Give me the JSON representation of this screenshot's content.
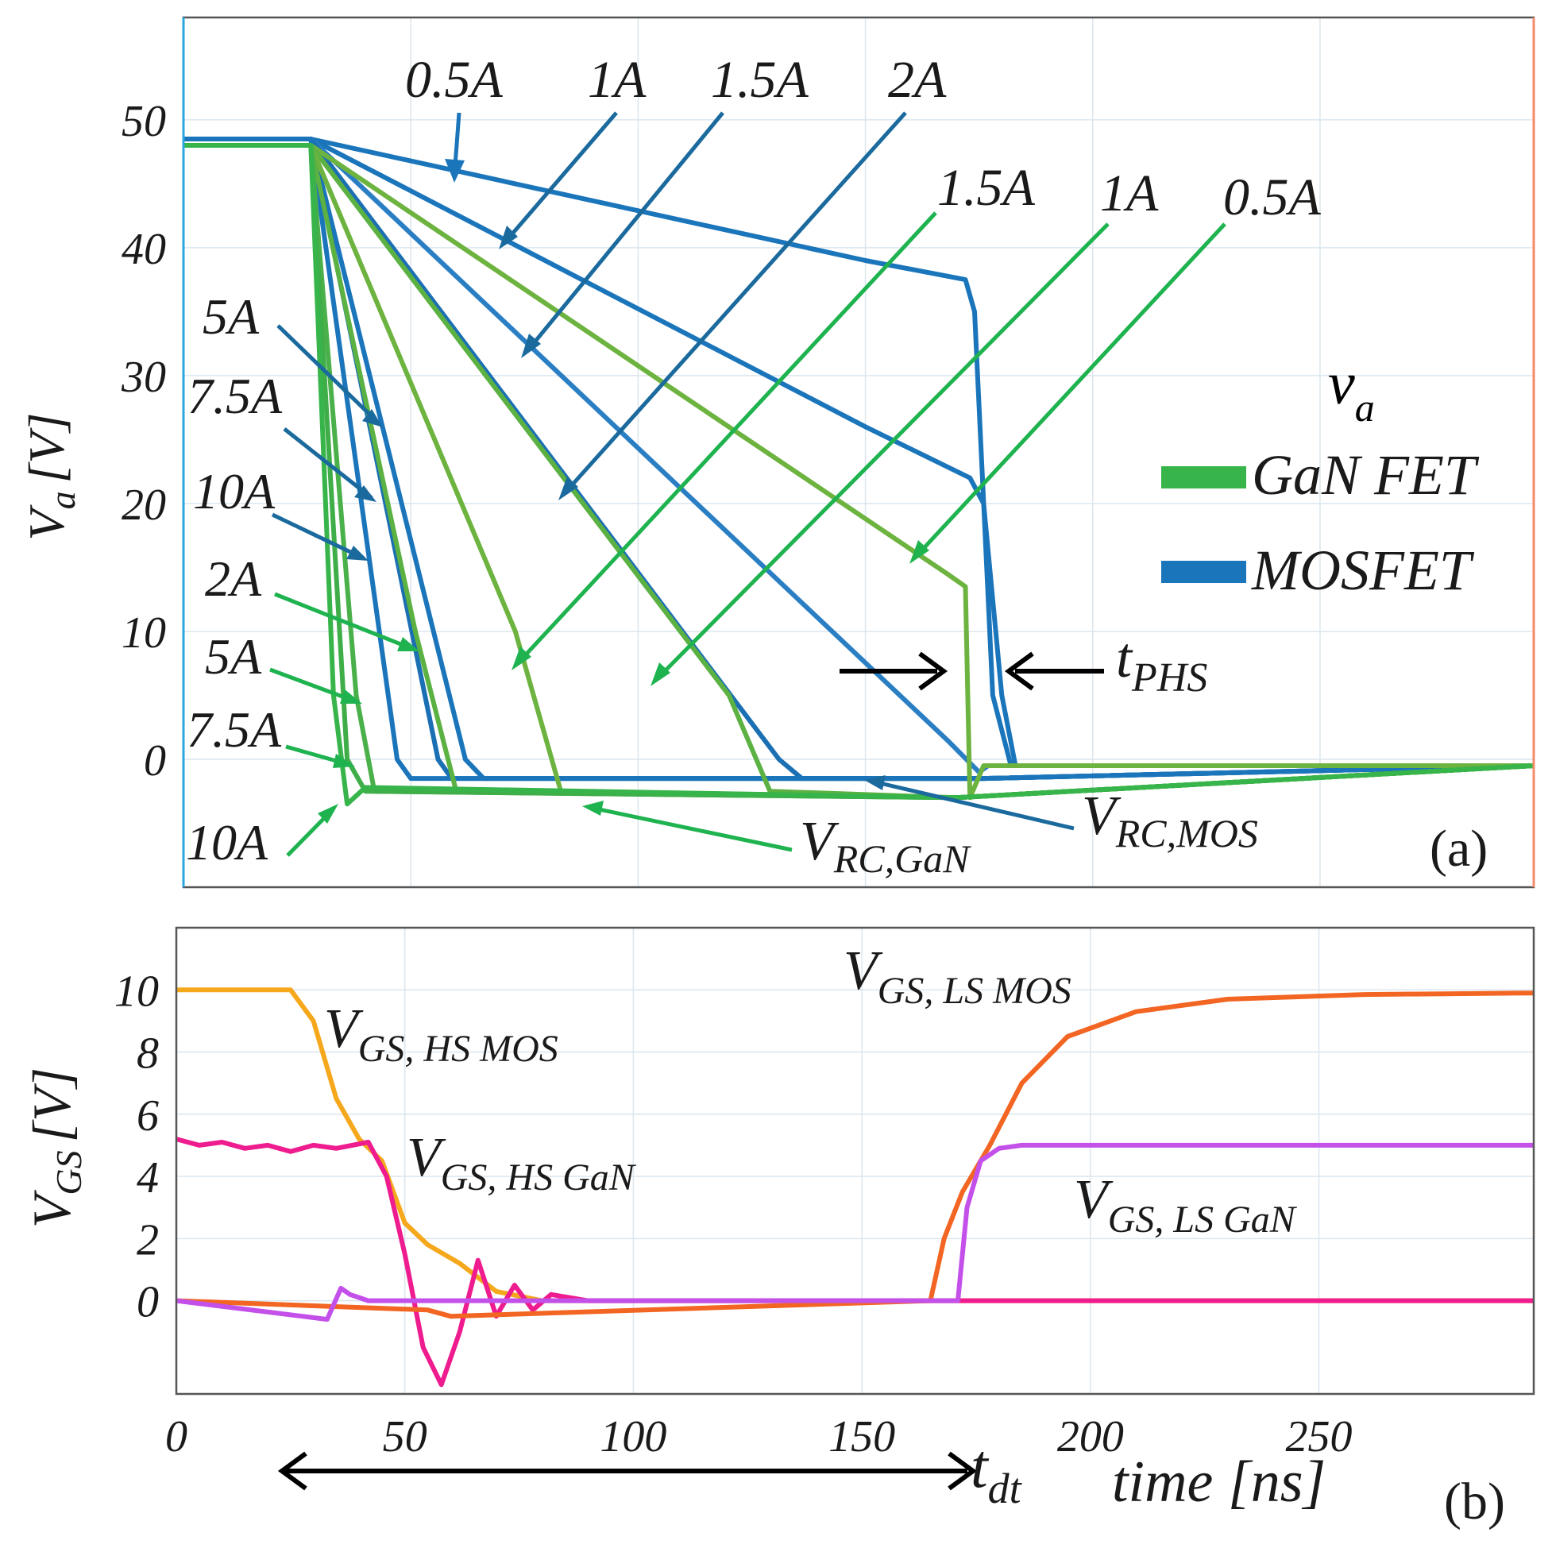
{
  "chart_data": [
    {
      "panel": "(a)",
      "type": "line",
      "ylabel": "V",
      "ylabel_sub": "a",
      "ylabel_unit": "[V]",
      "ylim": [
        -10,
        58
      ],
      "xlim": [
        0,
        297
      ],
      "yticks": [
        0,
        10,
        20,
        30,
        40,
        50
      ],
      "xgrid": [
        0,
        50,
        100,
        150,
        200,
        250
      ],
      "grid": true,
      "legend": {
        "placement": "right",
        "title_main": "v",
        "title_sub": "a",
        "entries": [
          {
            "name": "GaN FET",
            "color": "#37b44a"
          },
          {
            "name": "MOSFET",
            "color": "#1b75bb"
          }
        ]
      },
      "series_gan": [
        {
          "current": "0.5A",
          "x": [
            0,
            28,
            168,
            172,
            173,
            176,
            297
          ],
          "y": [
            48,
            48,
            14.5,
            13.5,
            -3,
            -0.5,
            -0.5
          ]
        },
        {
          "current": "1A",
          "x": [
            0,
            28,
            120,
            129,
            170,
            297
          ],
          "y": [
            48,
            48,
            5,
            -2.5,
            -3,
            -0.5
          ]
        },
        {
          "current": "1.5A",
          "x": [
            0,
            28,
            73,
            83,
            170,
            297
          ],
          "y": [
            48,
            48,
            10,
            -2.5,
            -3,
            -0.5
          ]
        },
        {
          "current": "2A",
          "x": [
            0,
            28,
            51,
            60,
            170,
            297
          ],
          "y": [
            48,
            48,
            10,
            -2.5,
            -3,
            -0.5
          ]
        },
        {
          "current": "5A",
          "x": [
            0,
            28,
            38,
            42,
            170,
            297
          ],
          "y": [
            48,
            48,
            5,
            -2.5,
            -3,
            -0.5
          ]
        },
        {
          "current": "7.5A",
          "x": [
            0,
            28,
            36,
            40,
            170,
            297
          ],
          "y": [
            48,
            48,
            0,
            -2.5,
            -3,
            -0.5
          ]
        },
        {
          "current": "10A",
          "x": [
            0,
            28,
            33,
            36,
            40,
            170,
            297
          ],
          "y": [
            48,
            48,
            5,
            -3.5,
            -2.2,
            -3,
            -0.5
          ]
        }
      ],
      "series_mos": [
        {
          "current": "0.5A",
          "x": [
            0,
            28,
            150,
            172,
            174,
            178,
            182,
            297
          ],
          "y": [
            48.5,
            48.5,
            39,
            37.5,
            35,
            5,
            -0.5,
            -0.5
          ]
        },
        {
          "current": "1A",
          "x": [
            0,
            28,
            150,
            173,
            176,
            180,
            183,
            297
          ],
          "y": [
            48.5,
            48.5,
            26,
            22,
            20,
            5,
            -0.5,
            -0.5
          ]
        },
        {
          "current": "1.5A",
          "x": [
            0,
            28,
            168,
            175,
            177,
            297
          ],
          "y": [
            48.5,
            48.5,
            1.5,
            -1,
            -0.5,
            -0.5
          ]
        },
        {
          "current": "2A",
          "x": [
            0,
            28,
            131,
            136,
            176,
            297
          ],
          "y": [
            48.5,
            48.5,
            0,
            -1.5,
            -1.5,
            -0.5
          ]
        },
        {
          "current": "5A",
          "x": [
            0,
            28,
            62,
            66,
            176,
            297
          ],
          "y": [
            48.5,
            48.5,
            0,
            -1.5,
            -1.5,
            -0.5
          ]
        },
        {
          "current": "7.5A",
          "x": [
            0,
            28,
            56,
            59,
            176,
            297
          ],
          "y": [
            48.5,
            48.5,
            0,
            -1.5,
            -1.5,
            -0.5
          ]
        },
        {
          "current": "10A",
          "x": [
            0,
            28,
            47,
            50,
            176,
            297
          ],
          "y": [
            48.5,
            48.5,
            0,
            -1.5,
            -1.5,
            -0.5
          ]
        }
      ],
      "annotations": {
        "mos_top": [
          "0.5A",
          "1A",
          "1.5A",
          "2A"
        ],
        "gan_top": [
          "1.5A",
          "1A",
          "0.5A"
        ],
        "mos_left": [
          "5A",
          "7.5A",
          "10A"
        ],
        "gan_left": [
          "2A",
          "5A",
          "7.5A",
          "10A"
        ],
        "t_phs_main": "t",
        "t_phs_sub": "PHS",
        "v_rc_gan_main": "V",
        "v_rc_gan_sub": "RC,GaN",
        "v_rc_mos_main": "V",
        "v_rc_mos_sub": "RC,MOS"
      }
    },
    {
      "panel": "(b)",
      "type": "line",
      "ylabel": "V",
      "ylabel_sub": "GS",
      "ylabel_unit": "[V]",
      "xlabel": "time [ns]",
      "xlim": [
        0,
        297
      ],
      "ylim": [
        -3,
        12
      ],
      "xticks": [
        0,
        50,
        100,
        150,
        200,
        250
      ],
      "yticks": [
        0,
        2,
        4,
        6,
        8,
        10
      ],
      "grid": true,
      "series": [
        {
          "name": "V GS, HS MOS",
          "main": "V",
          "sub": "GS, HS MOS",
          "color": "#f5a81c",
          "x": [
            0,
            25,
            30,
            35,
            40,
            45,
            50,
            55,
            62,
            70,
            80,
            297
          ],
          "y": [
            10,
            10,
            9,
            6.5,
            5.2,
            4.5,
            2.5,
            1.8,
            1.2,
            0.3,
            0,
            0
          ]
        },
        {
          "name": "V GS, HS GaN",
          "main": "V",
          "sub": "GS, HS GaN",
          "color": "#ee1c8e",
          "x": [
            0,
            5,
            10,
            15,
            20,
            25,
            30,
            35,
            42,
            46,
            50,
            54,
            58,
            62,
            66,
            70,
            74,
            78,
            82,
            90,
            297
          ],
          "y": [
            5.2,
            5,
            5.1,
            4.9,
            5,
            4.8,
            5,
            4.9,
            5.1,
            4,
            1.5,
            -1.5,
            -2.7,
            -1,
            1.3,
            -0.5,
            0.5,
            -0.3,
            0.2,
            0,
            0
          ]
        },
        {
          "name": "V GS, LS MOS",
          "main": "V",
          "sub": "GS, LS MOS",
          "color": "#f26522",
          "x": [
            0,
            55,
            60,
            165,
            168,
            172,
            178,
            185,
            195,
            210,
            230,
            260,
            297
          ],
          "y": [
            0,
            -0.3,
            -0.5,
            0,
            2,
            3.5,
            5,
            7,
            8.5,
            9.3,
            9.7,
            9.85,
            9.9
          ]
        },
        {
          "name": "V GS, LS GaN",
          "main": "V",
          "sub": "GS, LS GaN",
          "color": "#c450ea",
          "x": [
            0,
            33,
            36,
            38,
            42,
            171,
            173,
            176,
            180,
            185,
            297
          ],
          "y": [
            0,
            -0.6,
            0.4,
            0.2,
            0,
            0,
            3,
            4.5,
            4.9,
            5,
            5
          ]
        }
      ],
      "annotations": {
        "t_dt_main": "t",
        "t_dt_sub": "dt"
      }
    }
  ]
}
